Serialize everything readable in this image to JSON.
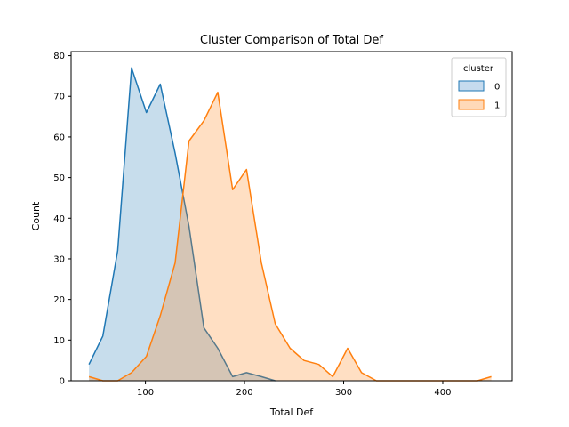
{
  "chart_data": {
    "type": "area",
    "title": "Cluster Comparison of Total Def",
    "xlabel": "Total Def",
    "ylabel": "Count",
    "xlim": [
      25,
      470
    ],
    "ylim": [
      0,
      81
    ],
    "xticks": [
      100,
      200,
      300,
      400
    ],
    "yticks": [
      0,
      10,
      20,
      30,
      40,
      50,
      60,
      70,
      80
    ],
    "grid": false,
    "legend": {
      "title": "cluster",
      "placement": "top-right"
    },
    "series": [
      {
        "name": "0",
        "color": "#1f77b4",
        "fill": "#c6dbee",
        "x": [
          43,
          57,
          72,
          86,
          101,
          115,
          130,
          144,
          159,
          173,
          188,
          202,
          217,
          231
        ],
        "values": [
          4,
          11,
          32,
          77,
          66,
          73,
          56,
          38,
          13,
          8,
          1,
          2,
          1,
          0
        ]
      },
      {
        "name": "1",
        "color": "#ff7f0e",
        "fill": "#ffd9b8",
        "x": [
          43,
          57,
          72,
          86,
          101,
          115,
          130,
          144,
          159,
          173,
          188,
          202,
          217,
          231,
          246,
          260,
          275,
          289,
          304,
          318,
          333,
          348,
          362,
          377,
          391,
          406,
          420,
          435,
          449
        ],
        "values": [
          1,
          0,
          0,
          2,
          6,
          16,
          29,
          59,
          64,
          71,
          47,
          52,
          29,
          14,
          8,
          5,
          4,
          1,
          8,
          2,
          0,
          0,
          0,
          0,
          0,
          0,
          0,
          0,
          1
        ]
      }
    ]
  }
}
